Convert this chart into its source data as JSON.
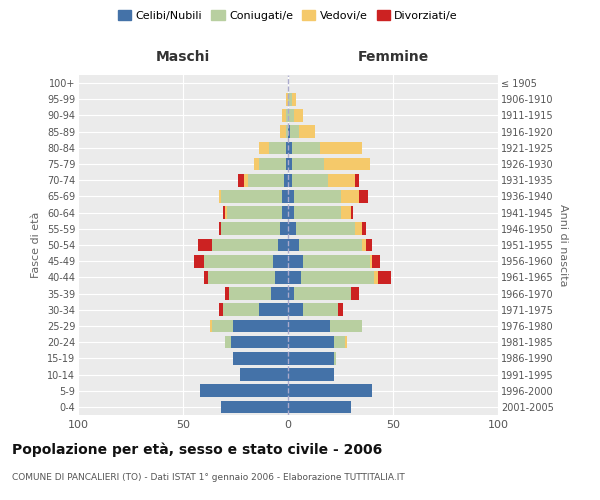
{
  "age_groups": [
    "0-4",
    "5-9",
    "10-14",
    "15-19",
    "20-24",
    "25-29",
    "30-34",
    "35-39",
    "40-44",
    "45-49",
    "50-54",
    "55-59",
    "60-64",
    "65-69",
    "70-74",
    "75-79",
    "80-84",
    "85-89",
    "90-94",
    "95-99",
    "100+"
  ],
  "birth_years": [
    "2001-2005",
    "1996-2000",
    "1991-1995",
    "1986-1990",
    "1981-1985",
    "1976-1980",
    "1971-1975",
    "1966-1970",
    "1961-1965",
    "1956-1960",
    "1951-1955",
    "1946-1950",
    "1941-1945",
    "1936-1940",
    "1931-1935",
    "1926-1930",
    "1921-1925",
    "1916-1920",
    "1911-1915",
    "1906-1910",
    "≤ 1905"
  ],
  "colors": {
    "celibi": "#4472a8",
    "coniugati": "#b8cfa0",
    "vedovi": "#f5c96a",
    "divorziati": "#cc2222"
  },
  "males": {
    "celibi": [
      32,
      42,
      23,
      26,
      27,
      26,
      14,
      8,
      6,
      7,
      5,
      4,
      3,
      3,
      2,
      1,
      1,
      0,
      0,
      0,
      0
    ],
    "coniugati": [
      0,
      0,
      0,
      0,
      3,
      10,
      17,
      20,
      32,
      33,
      31,
      28,
      26,
      29,
      17,
      13,
      8,
      1,
      1,
      0,
      0
    ],
    "vedovi": [
      0,
      0,
      0,
      0,
      0,
      1,
      0,
      0,
      0,
      0,
      0,
      0,
      1,
      1,
      2,
      2,
      5,
      3,
      2,
      1,
      0
    ],
    "divorziati": [
      0,
      0,
      0,
      0,
      0,
      0,
      2,
      2,
      2,
      5,
      7,
      1,
      1,
      0,
      3,
      0,
      0,
      0,
      0,
      0,
      0
    ]
  },
  "females": {
    "nubili": [
      30,
      40,
      22,
      22,
      22,
      20,
      7,
      3,
      6,
      7,
      5,
      4,
      3,
      3,
      2,
      2,
      2,
      1,
      0,
      0,
      0
    ],
    "coniugate": [
      0,
      0,
      0,
      1,
      5,
      15,
      17,
      27,
      35,
      32,
      30,
      28,
      22,
      22,
      17,
      15,
      13,
      4,
      3,
      2,
      0
    ],
    "vedove": [
      0,
      0,
      0,
      0,
      1,
      0,
      0,
      0,
      2,
      1,
      2,
      3,
      5,
      9,
      13,
      22,
      20,
      8,
      4,
      2,
      0
    ],
    "divorziate": [
      0,
      0,
      0,
      0,
      0,
      0,
      2,
      4,
      6,
      4,
      3,
      2,
      1,
      4,
      2,
      0,
      0,
      0,
      0,
      0,
      0
    ]
  },
  "xlim": 100,
  "title": "Popolazione per età, sesso e stato civile - 2006",
  "subtitle": "COMUNE DI PANCALIERI (TO) - Dati ISTAT 1° gennaio 2006 - Elaborazione TUTTITALIA.IT",
  "ylabel_left": "Fasce di età",
  "ylabel_right": "Anni di nascita",
  "xlabel_left": "Maschi",
  "xlabel_right": "Femmine",
  "legend_labels": [
    "Celibi/Nubili",
    "Coniugati/e",
    "Vedovi/e",
    "Divorziati/e"
  ],
  "plot_bg": "#ebebeb",
  "fig_bg": "#ffffff"
}
